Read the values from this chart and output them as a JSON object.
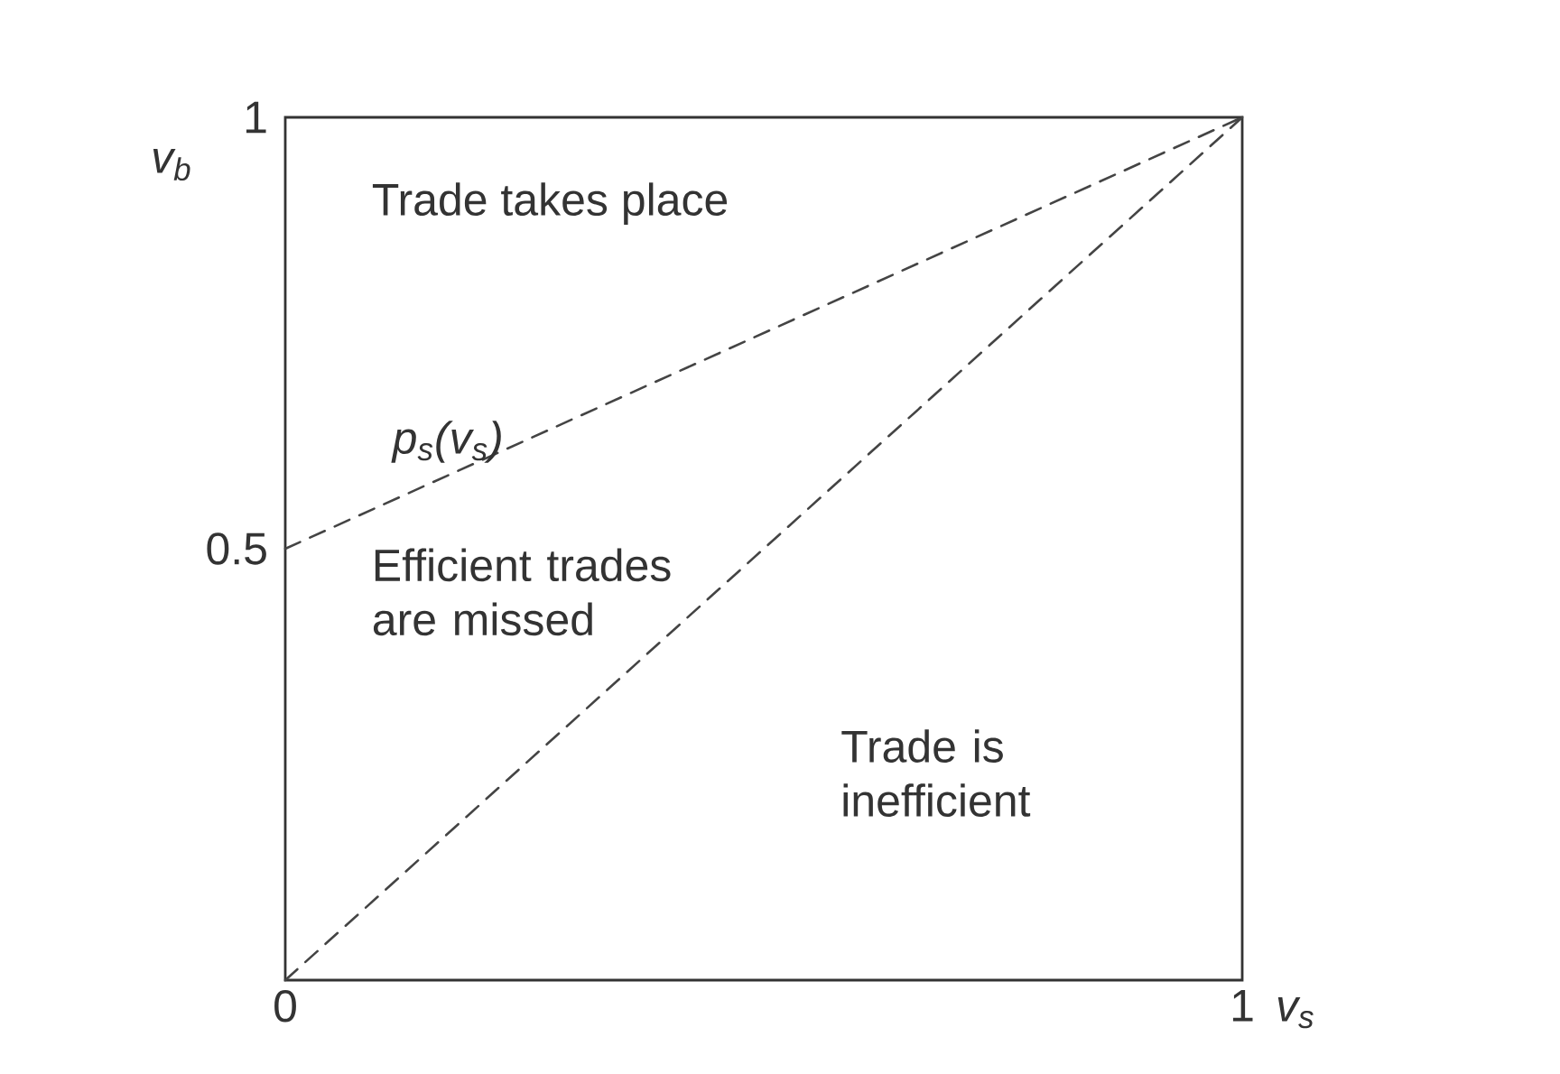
{
  "chart_data": {
    "type": "line",
    "xlabel": "v$_{s}$",
    "ylabel": "v$_{b}$",
    "xlim": [
      0,
      1
    ],
    "ylim": [
      0,
      1
    ],
    "xticks": [
      0,
      1
    ],
    "yticks": [
      0.5,
      1
    ],
    "x": [
      0,
      1
    ],
    "series": [
      {
        "name": "p$_{s}$(v$_{s}$)",
        "color": "#444444",
        "values": [
          0.5,
          1
        ]
      },
      {
        "color": "#444444",
        "values": [
          0,
          1
        ]
      }
    ],
    "line_style": "dashed",
    "marker": "none",
    "annotations": [
      "Trade takes place",
      "Efficient trades are missed",
      "Trade is inefficient"
    ]
  }
}
